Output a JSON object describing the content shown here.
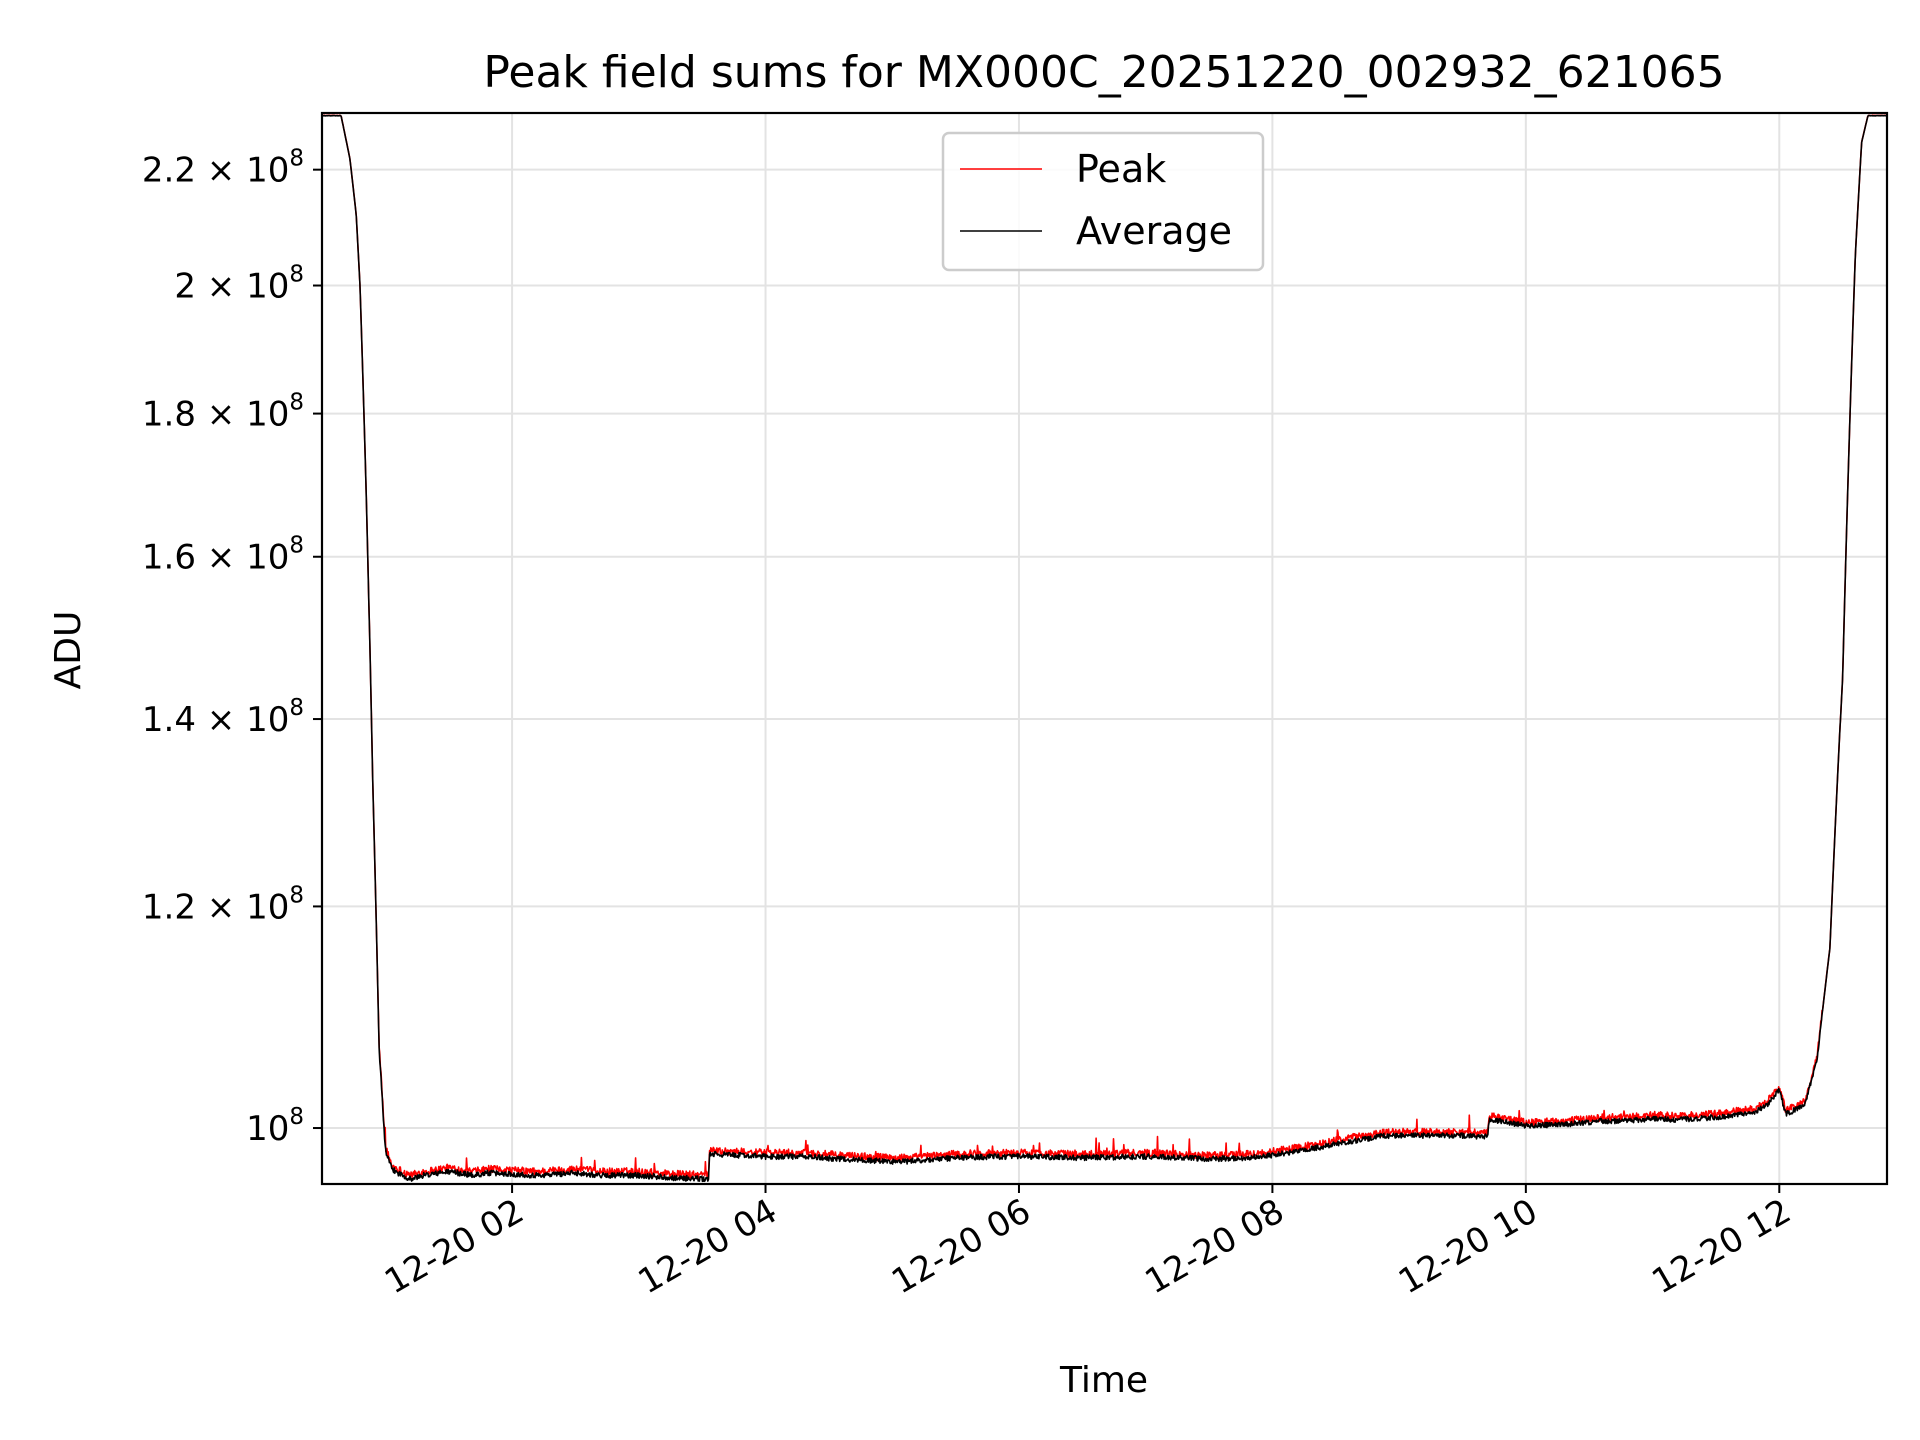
{
  "chart_data": {
    "type": "line",
    "title": "Peak field sums for MX000C_20251220_002932_621065",
    "xlabel": "Time",
    "ylabel": "ADU",
    "yscale": "log",
    "x_unit": "hours since 2025-12-20 00:00",
    "xlim": [
      0.5,
      12.85
    ],
    "ylim": [
      95500000,
      230500000
    ],
    "grid": true,
    "legend_position": "upper-center",
    "x_ticks": [
      {
        "value": 2,
        "label": "12-20 02"
      },
      {
        "value": 4,
        "label": "12-20 04"
      },
      {
        "value": 6,
        "label": "12-20 06"
      },
      {
        "value": 8,
        "label": "12-20 08"
      },
      {
        "value": 10,
        "label": "12-20 10"
      },
      {
        "value": 12,
        "label": "12-20 12"
      }
    ],
    "y_ticks": [
      {
        "value": 100000000,
        "mantissa": "10",
        "exponent": "8"
      },
      {
        "value": 120000000,
        "mantissa": "1.2 × 10",
        "exponent": "8"
      },
      {
        "value": 140000000,
        "mantissa": "1.4 × 10",
        "exponent": "8"
      },
      {
        "value": 160000000,
        "mantissa": "1.6 × 10",
        "exponent": "8"
      },
      {
        "value": 180000000,
        "mantissa": "1.8 × 10",
        "exponent": "8"
      },
      {
        "value": 200000000,
        "mantissa": "2 × 10",
        "exponent": "8"
      },
      {
        "value": 220000000,
        "mantissa": "2.2 × 10",
        "exponent": "8"
      }
    ],
    "base_curve": {
      "x": [
        0.5,
        0.65,
        0.72,
        0.77,
        0.8,
        0.85,
        0.9,
        0.95,
        1.0,
        1.05,
        1.1,
        1.2,
        1.3,
        1.5,
        1.7,
        1.8,
        2.0,
        2.2,
        2.5,
        2.7,
        3.0,
        3.3,
        3.55,
        3.56,
        3.8,
        4.0,
        4.3,
        4.6,
        5.0,
        5.1,
        5.5,
        5.8,
        6.0,
        6.5,
        7.0,
        7.5,
        7.8,
        8.0,
        8.3,
        8.6,
        8.9,
        9.2,
        9.5,
        9.7,
        9.71,
        9.8,
        10.0,
        10.3,
        10.6,
        10.8,
        11.0,
        11.2,
        11.5,
        11.8,
        11.9,
        12.0,
        12.05,
        12.1,
        12.2,
        12.3,
        12.4,
        12.5,
        12.55,
        12.6,
        12.65,
        12.7,
        12.85
      ],
      "y": [
        230000000,
        230000000,
        222000000,
        212000000,
        200000000,
        168000000,
        133000000,
        107000000,
        98300000,
        96800000,
        96500000,
        96000000,
        96300000,
        96600000,
        96300000,
        96500000,
        96400000,
        96300000,
        96500000,
        96300000,
        96300000,
        96100000,
        96000000,
        98000000,
        97900000,
        97800000,
        97800000,
        97600000,
        97400000,
        97400000,
        97700000,
        97800000,
        97800000,
        97700000,
        97800000,
        97600000,
        97700000,
        97900000,
        98400000,
        99000000,
        99500000,
        99500000,
        99500000,
        99400000,
        100800000,
        100700000,
        100300000,
        100400000,
        100700000,
        100700000,
        100900000,
        100800000,
        101000000,
        101400000,
        102000000,
        103300000,
        101300000,
        101500000,
        102000000,
        106000000,
        116000000,
        145000000,
        175000000,
        205000000,
        225000000,
        230000000,
        230000000
      ]
    },
    "series": [
      {
        "name": "Peak",
        "color": "#ff0000",
        "offset": 180000,
        "noise": 300000
      },
      {
        "name": "Average",
        "color": "#000000",
        "offset": -120000,
        "noise": 220000
      }
    ]
  }
}
